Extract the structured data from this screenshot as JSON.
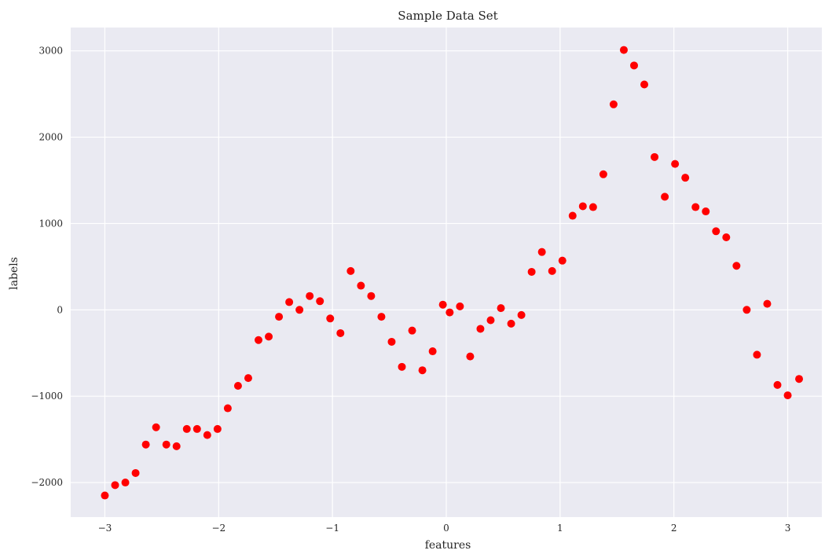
{
  "chart_data": {
    "type": "scatter",
    "title": "Sample Data Set",
    "xlabel": "features",
    "ylabel": "labels",
    "xlim": [
      -3.3,
      3.3
    ],
    "ylim": [
      -2400,
      3270
    ],
    "xticks": [
      -3,
      -2,
      -1,
      0,
      1,
      2,
      3
    ],
    "xtick_labels": [
      "−3",
      "−2",
      "−1",
      "0",
      "1",
      "2",
      "3"
    ],
    "yticks": [
      -2000,
      -1000,
      0,
      1000,
      2000,
      3000
    ],
    "ytick_labels": [
      "−2000",
      "−1000",
      "0",
      "1000",
      "2000",
      "3000"
    ],
    "grid": true,
    "marker_color": "#ff0000",
    "background_color": "#eaeaf2",
    "points": [
      [
        -3.0,
        -2150
      ],
      [
        -2.91,
        -2030
      ],
      [
        -2.82,
        -2000
      ],
      [
        -2.73,
        -1890
      ],
      [
        -2.64,
        -1560
      ],
      [
        -2.55,
        -1360
      ],
      [
        -2.46,
        -1560
      ],
      [
        -2.37,
        -1580
      ],
      [
        -2.28,
        -1380
      ],
      [
        -2.19,
        -1380
      ],
      [
        -2.1,
        -1450
      ],
      [
        -2.01,
        -1380
      ],
      [
        -1.92,
        -1140
      ],
      [
        -1.83,
        -880
      ],
      [
        -1.74,
        -790
      ],
      [
        -1.65,
        -350
      ],
      [
        -1.56,
        -310
      ],
      [
        -1.47,
        -80
      ],
      [
        -1.38,
        90
      ],
      [
        -1.29,
        0
      ],
      [
        -1.2,
        160
      ],
      [
        -1.11,
        100
      ],
      [
        -1.02,
        -100
      ],
      [
        -0.93,
        -270
      ],
      [
        -0.84,
        450
      ],
      [
        -0.75,
        280
      ],
      [
        -0.66,
        160
      ],
      [
        -0.57,
        -80
      ],
      [
        -0.48,
        -370
      ],
      [
        -0.39,
        -660
      ],
      [
        -0.3,
        -240
      ],
      [
        -0.21,
        -700
      ],
      [
        -0.12,
        -480
      ],
      [
        -0.03,
        60
      ],
      [
        0.03,
        -30
      ],
      [
        0.12,
        40
      ],
      [
        0.21,
        -540
      ],
      [
        0.3,
        -220
      ],
      [
        0.39,
        -120
      ],
      [
        0.48,
        20
      ],
      [
        0.57,
        -160
      ],
      [
        0.66,
        -60
      ],
      [
        0.75,
        440
      ],
      [
        0.84,
        670
      ],
      [
        0.93,
        450
      ],
      [
        1.02,
        570
      ],
      [
        1.11,
        1090
      ],
      [
        1.2,
        1200
      ],
      [
        1.29,
        1190
      ],
      [
        1.38,
        1570
      ],
      [
        1.47,
        2380
      ],
      [
        1.56,
        3010
      ],
      [
        1.65,
        2830
      ],
      [
        1.74,
        2610
      ],
      [
        1.83,
        1770
      ],
      [
        1.92,
        1310
      ],
      [
        2.01,
        1690
      ],
      [
        2.1,
        1530
      ],
      [
        2.19,
        1190
      ],
      [
        2.28,
        1140
      ],
      [
        2.37,
        910
      ],
      [
        2.46,
        840
      ],
      [
        2.55,
        510
      ],
      [
        2.64,
        0
      ],
      [
        2.73,
        -520
      ],
      [
        2.82,
        70
      ],
      [
        2.91,
        -870
      ],
      [
        3.0,
        -990
      ],
      [
        3.1,
        -800
      ]
    ]
  }
}
